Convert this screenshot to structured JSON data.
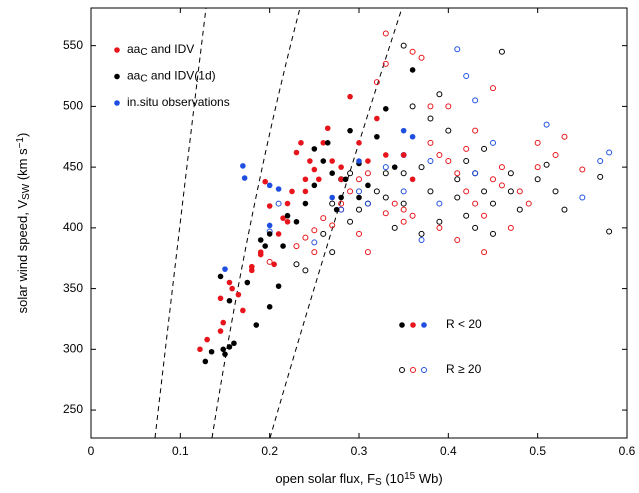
{
  "chart_data": {
    "type": "scatter",
    "xlabel": "open solar flux, FS (1015 Wb)",
    "ylabel": "solar wind speed, VSW (km s−1)",
    "xlim": [
      0,
      0.6
    ],
    "ylim": [
      227,
      581
    ],
    "xticks": [
      0,
      0.1,
      0.2,
      0.3,
      0.4,
      0.5,
      0.6
    ],
    "yticks": [
      250,
      300,
      350,
      400,
      450,
      500,
      550
    ],
    "annotations": [
      "R < 20",
      "R ≥ 20"
    ],
    "series": [
      {
        "name": "aaC and IDV",
        "color": "#e8141b",
        "filled": true,
        "x": [
          0.122,
          0.13,
          0.145,
          0.148,
          0.145,
          0.155,
          0.158,
          0.165,
          0.17,
          0.18,
          0.19,
          0.195,
          0.2,
          0.205,
          0.21,
          0.215,
          0.22,
          0.225,
          0.23,
          0.235,
          0.24,
          0.245,
          0.25,
          0.255,
          0.26,
          0.265,
          0.27,
          0.28,
          0.29,
          0.3,
          0.31,
          0.32,
          0.33,
          0.35,
          0.36,
          0.24,
          0.22,
          0.19,
          0.28,
          0.18
        ],
        "values": [
          300,
          308,
          315,
          322,
          342,
          355,
          350,
          345,
          332,
          365,
          378,
          438,
          418,
          370,
          395,
          408,
          420,
          430,
          462,
          470,
          430,
          455,
          448,
          440,
          470,
          482,
          455,
          450,
          508,
          470,
          455,
          490,
          460,
          460,
          440,
          440,
          405,
          380,
          440,
          368
        ]
      },
      {
        "name": "aaC and IDV(1d)",
        "color": "#000000",
        "filled": true,
        "x": [
          0.128,
          0.135,
          0.148,
          0.155,
          0.16,
          0.15,
          0.145,
          0.155,
          0.175,
          0.185,
          0.19,
          0.195,
          0.2,
          0.2,
          0.21,
          0.215,
          0.22,
          0.23,
          0.24,
          0.25,
          0.26,
          0.265,
          0.275,
          0.28,
          0.285,
          0.29,
          0.3,
          0.31,
          0.32,
          0.33,
          0.34,
          0.36,
          0.27,
          0.3,
          0.25
        ],
        "values": [
          290,
          298,
          300,
          302,
          305,
          296,
          360,
          340,
          355,
          320,
          390,
          385,
          395,
          335,
          352,
          385,
          410,
          405,
          420,
          435,
          455,
          470,
          415,
          425,
          440,
          480,
          453,
          435,
          475,
          498,
          450,
          530,
          445,
          425,
          465
        ]
      },
      {
        "name": "in-situ observations",
        "color": "#1f4fe0",
        "filled": true,
        "x": [
          0.17,
          0.172,
          0.15,
          0.2,
          0.2,
          0.21,
          0.27,
          0.35,
          0.36,
          0.3
        ],
        "values": [
          451,
          441,
          366,
          402,
          435,
          432,
          425,
          480,
          475,
          455
        ]
      },
      {
        "color": "#e8141b",
        "filled": false,
        "x": [
          0.2,
          0.23,
          0.24,
          0.25,
          0.26,
          0.27,
          0.28,
          0.29,
          0.3,
          0.31,
          0.32,
          0.33,
          0.33,
          0.34,
          0.35,
          0.36,
          0.37,
          0.38,
          0.39,
          0.4,
          0.41,
          0.42,
          0.43,
          0.44,
          0.45,
          0.46,
          0.47,
          0.48,
          0.5,
          0.52,
          0.53,
          0.41,
          0.43,
          0.45,
          0.35,
          0.3,
          0.28,
          0.38,
          0.44,
          0.49,
          0.36,
          0.4,
          0.33,
          0.42,
          0.25,
          0.46,
          0.5,
          0.55,
          0.39,
          0.31
        ],
        "values": [
          372,
          385,
          392,
          398,
          408,
          402,
          415,
          430,
          440,
          445,
          520,
          560,
          535,
          420,
          415,
          545,
          540,
          500,
          460,
          455,
          445,
          430,
          420,
          410,
          440,
          450,
          400,
          430,
          450,
          460,
          475,
          390,
          480,
          515,
          405,
          395,
          420,
          470,
          380,
          420,
          410,
          500,
          412,
          465,
          380,
          435,
          470,
          448,
          400,
          380
        ]
      },
      {
        "color": "#000000",
        "filled": false,
        "x": [
          0.23,
          0.24,
          0.26,
          0.27,
          0.28,
          0.29,
          0.3,
          0.31,
          0.32,
          0.33,
          0.34,
          0.35,
          0.36,
          0.37,
          0.38,
          0.39,
          0.4,
          0.41,
          0.42,
          0.43,
          0.44,
          0.45,
          0.46,
          0.47,
          0.48,
          0.5,
          0.51,
          0.52,
          0.53,
          0.57,
          0.58,
          0.35,
          0.37,
          0.39,
          0.41,
          0.43,
          0.45,
          0.47,
          0.33,
          0.35,
          0.29,
          0.27,
          0.42,
          0.38,
          0.44
        ],
        "values": [
          370,
          365,
          395,
          420,
          440,
          445,
          415,
          420,
          430,
          425,
          400,
          445,
          500,
          450,
          430,
          510,
          480,
          425,
          455,
          445,
          430,
          420,
          545,
          430,
          415,
          440,
          452,
          430,
          415,
          442,
          397,
          550,
          395,
          405,
          440,
          400,
          395,
          445,
          445,
          420,
          405,
          380,
          410,
          490,
          465
        ]
      },
      {
        "color": "#1f4fe0",
        "filled": false,
        "x": [
          0.2,
          0.21,
          0.25,
          0.28,
          0.3,
          0.33,
          0.35,
          0.37,
          0.38,
          0.41,
          0.42,
          0.43,
          0.45,
          0.51,
          0.55,
          0.57,
          0.58,
          0.35,
          0.39,
          0.31,
          0.43
        ],
        "values": [
          397,
          420,
          388,
          415,
          430,
          450,
          460,
          390,
          455,
          547,
          525,
          505,
          470,
          485,
          425,
          455,
          462,
          430,
          420,
          420,
          445
        ]
      }
    ]
  }
}
